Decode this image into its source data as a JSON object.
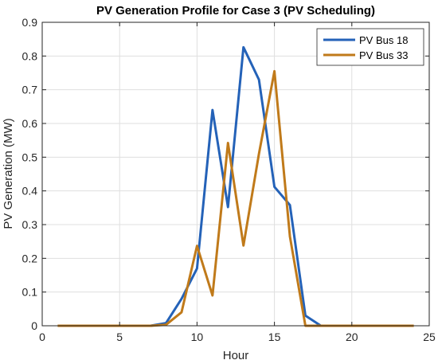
{
  "chart_data": {
    "type": "line",
    "title": "PV Generation Profile for Case 3 (PV Scheduling)",
    "xlabel": "Hour",
    "ylabel": "PV Generation (MW)",
    "xlim": [
      0,
      25
    ],
    "ylim": [
      0,
      0.9
    ],
    "xticks": [
      0,
      5,
      10,
      15,
      20,
      25
    ],
    "yticks": [
      0,
      0.1,
      0.2,
      0.3,
      0.4,
      0.5,
      0.6,
      0.7,
      0.8,
      0.9
    ],
    "grid": true,
    "legend_position": "top-right",
    "x": [
      1,
      2,
      3,
      4,
      5,
      6,
      7,
      8,
      9,
      10,
      11,
      12,
      13,
      14,
      15,
      16,
      17,
      18,
      19,
      20,
      21,
      22,
      23,
      24
    ],
    "series": [
      {
        "name": "PV Bus 18",
        "color": "#2462b8",
        "values": [
          0,
          0,
          0,
          0,
          0,
          0,
          0,
          0.008,
          0.08,
          0.17,
          0.64,
          0.352,
          0.826,
          0.73,
          0.412,
          0.358,
          0.03,
          0,
          0,
          0,
          0,
          0,
          0,
          0
        ]
      },
      {
        "name": "PV Bus 33",
        "color": "#c07a1a",
        "values": [
          0,
          0,
          0,
          0,
          0,
          0,
          0,
          0.003,
          0.04,
          0.237,
          0.09,
          0.542,
          0.238,
          0.51,
          0.755,
          0.265,
          0,
          0,
          0,
          0,
          0,
          0,
          0,
          0
        ]
      }
    ]
  }
}
